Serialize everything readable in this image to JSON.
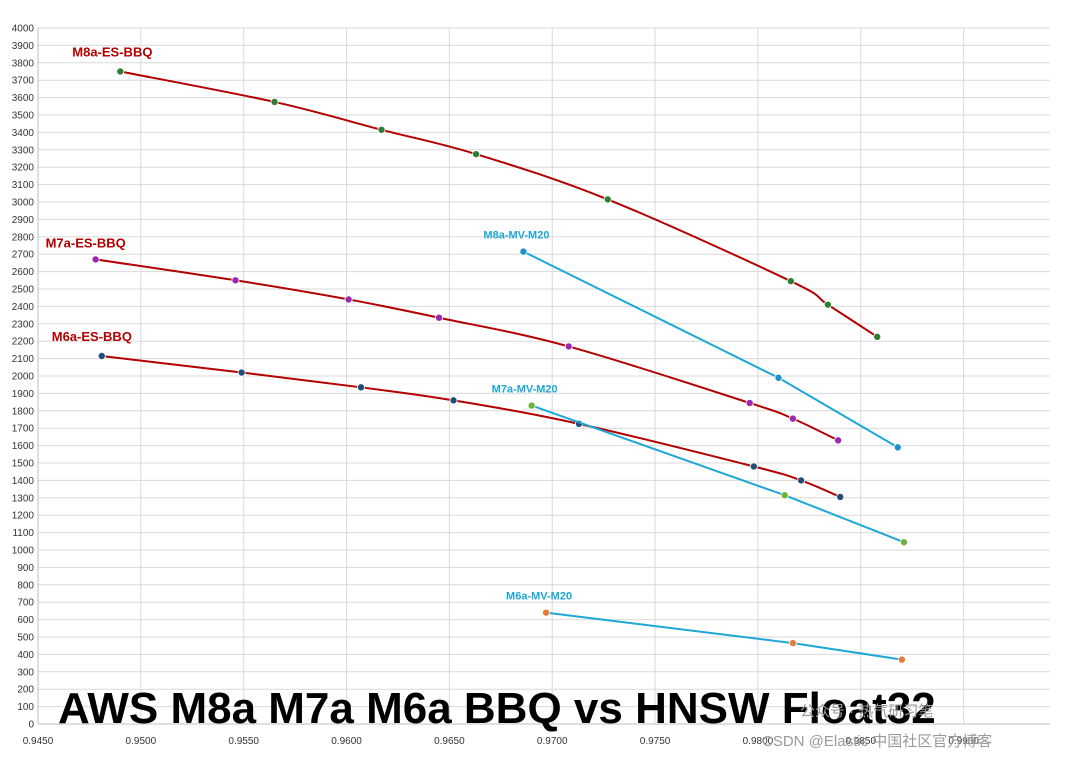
{
  "chart_data": {
    "type": "line",
    "title": "AWS M8a M7a M6a BBQ vs HNSW Float32",
    "xlabel": "",
    "ylabel": "",
    "xlim": [
      0.945,
      0.9942
    ],
    "ylim": [
      0,
      4000
    ],
    "x_ticks": [
      "0.9450",
      "0.9500",
      "0.9550",
      "0.9600",
      "0.9650",
      "0.9700",
      "0.9750",
      "0.9800",
      "0.9850",
      "0.9900"
    ],
    "y_ticks": [
      "0",
      "100",
      "200",
      "300",
      "400",
      "500",
      "600",
      "700",
      "800",
      "900",
      "1000",
      "1100",
      "1200",
      "1300",
      "1400",
      "1500",
      "1600",
      "1700",
      "1800",
      "1900",
      "2000",
      "2100",
      "2200",
      "2300",
      "2400",
      "2500",
      "2600",
      "2700",
      "2800",
      "2900",
      "3000",
      "3100",
      "3200",
      "3300",
      "3400",
      "3500",
      "3600",
      "3700",
      "3800",
      "3900",
      "4000"
    ],
    "grid": true,
    "legend": "none",
    "series": [
      {
        "name": "M8a-ES-BBQ",
        "line_color": "#b30000",
        "marker_color": "#2e7d32",
        "smooth": true,
        "x": [
          0.949,
          0.9565,
          0.9617,
          0.9663,
          0.9727,
          0.9816,
          0.9834,
          0.9858
        ],
        "y": [
          3750,
          3575,
          3415,
          3275,
          3015,
          2545,
          2410,
          2225
        ]
      },
      {
        "name": "M7a-ES-BBQ",
        "line_color": "#b30000",
        "marker_color": "#9c27b0",
        "smooth": true,
        "x": [
          0.9478,
          0.9546,
          0.9601,
          0.9645,
          0.9708,
          0.9796,
          0.9817,
          0.9839
        ],
        "y": [
          2670,
          2550,
          2440,
          2335,
          2170,
          1845,
          1755,
          1630
        ]
      },
      {
        "name": "M6a-ES-BBQ",
        "line_color": "#b30000",
        "marker_color": "#1f4e79",
        "smooth": true,
        "x": [
          0.9481,
          0.9549,
          0.9607,
          0.9652,
          0.9713,
          0.9798,
          0.9821,
          0.984
        ],
        "y": [
          2115,
          2020,
          1935,
          1860,
          1725,
          1480,
          1400,
          1305
        ]
      },
      {
        "name": "M8a-MV-M20",
        "line_color": "#1ea7d7",
        "marker_color": "#1e90c8",
        "smooth": false,
        "x": [
          0.9686,
          0.981,
          0.9868
        ],
        "y": [
          2715,
          1990,
          1590
        ]
      },
      {
        "name": "M7a-MV-M20",
        "line_color": "#1ea7d7",
        "marker_color": "#6ab539",
        "smooth": false,
        "x": [
          0.969,
          0.9813,
          0.9871
        ],
        "y": [
          1830,
          1315,
          1045
        ]
      },
      {
        "name": "M6a-MV-M20",
        "line_color": "#1ea7d7",
        "marker_color": "#e87a3c",
        "smooth": false,
        "x": [
          0.9697,
          0.9817,
          0.987
        ],
        "y": [
          640,
          465,
          370
        ]
      }
    ],
    "annotations": [
      "M8a-ES-BBQ",
      "M7a-ES-BBQ",
      "M6a-ES-BBQ",
      "M8a-MV-M20",
      "M7a-MV-M20",
      "M6a-MV-M20"
    ],
    "annotation_colors": [
      "#b30000",
      "#b30000",
      "#b30000",
      "#1ea7d7",
      "#1ea7d7",
      "#1ea7d7"
    ]
  },
  "watermark": {
    "line1": "公众号 · 热气研习笔",
    "line2": "CSDN @Elastic 中国社区官方博客"
  }
}
